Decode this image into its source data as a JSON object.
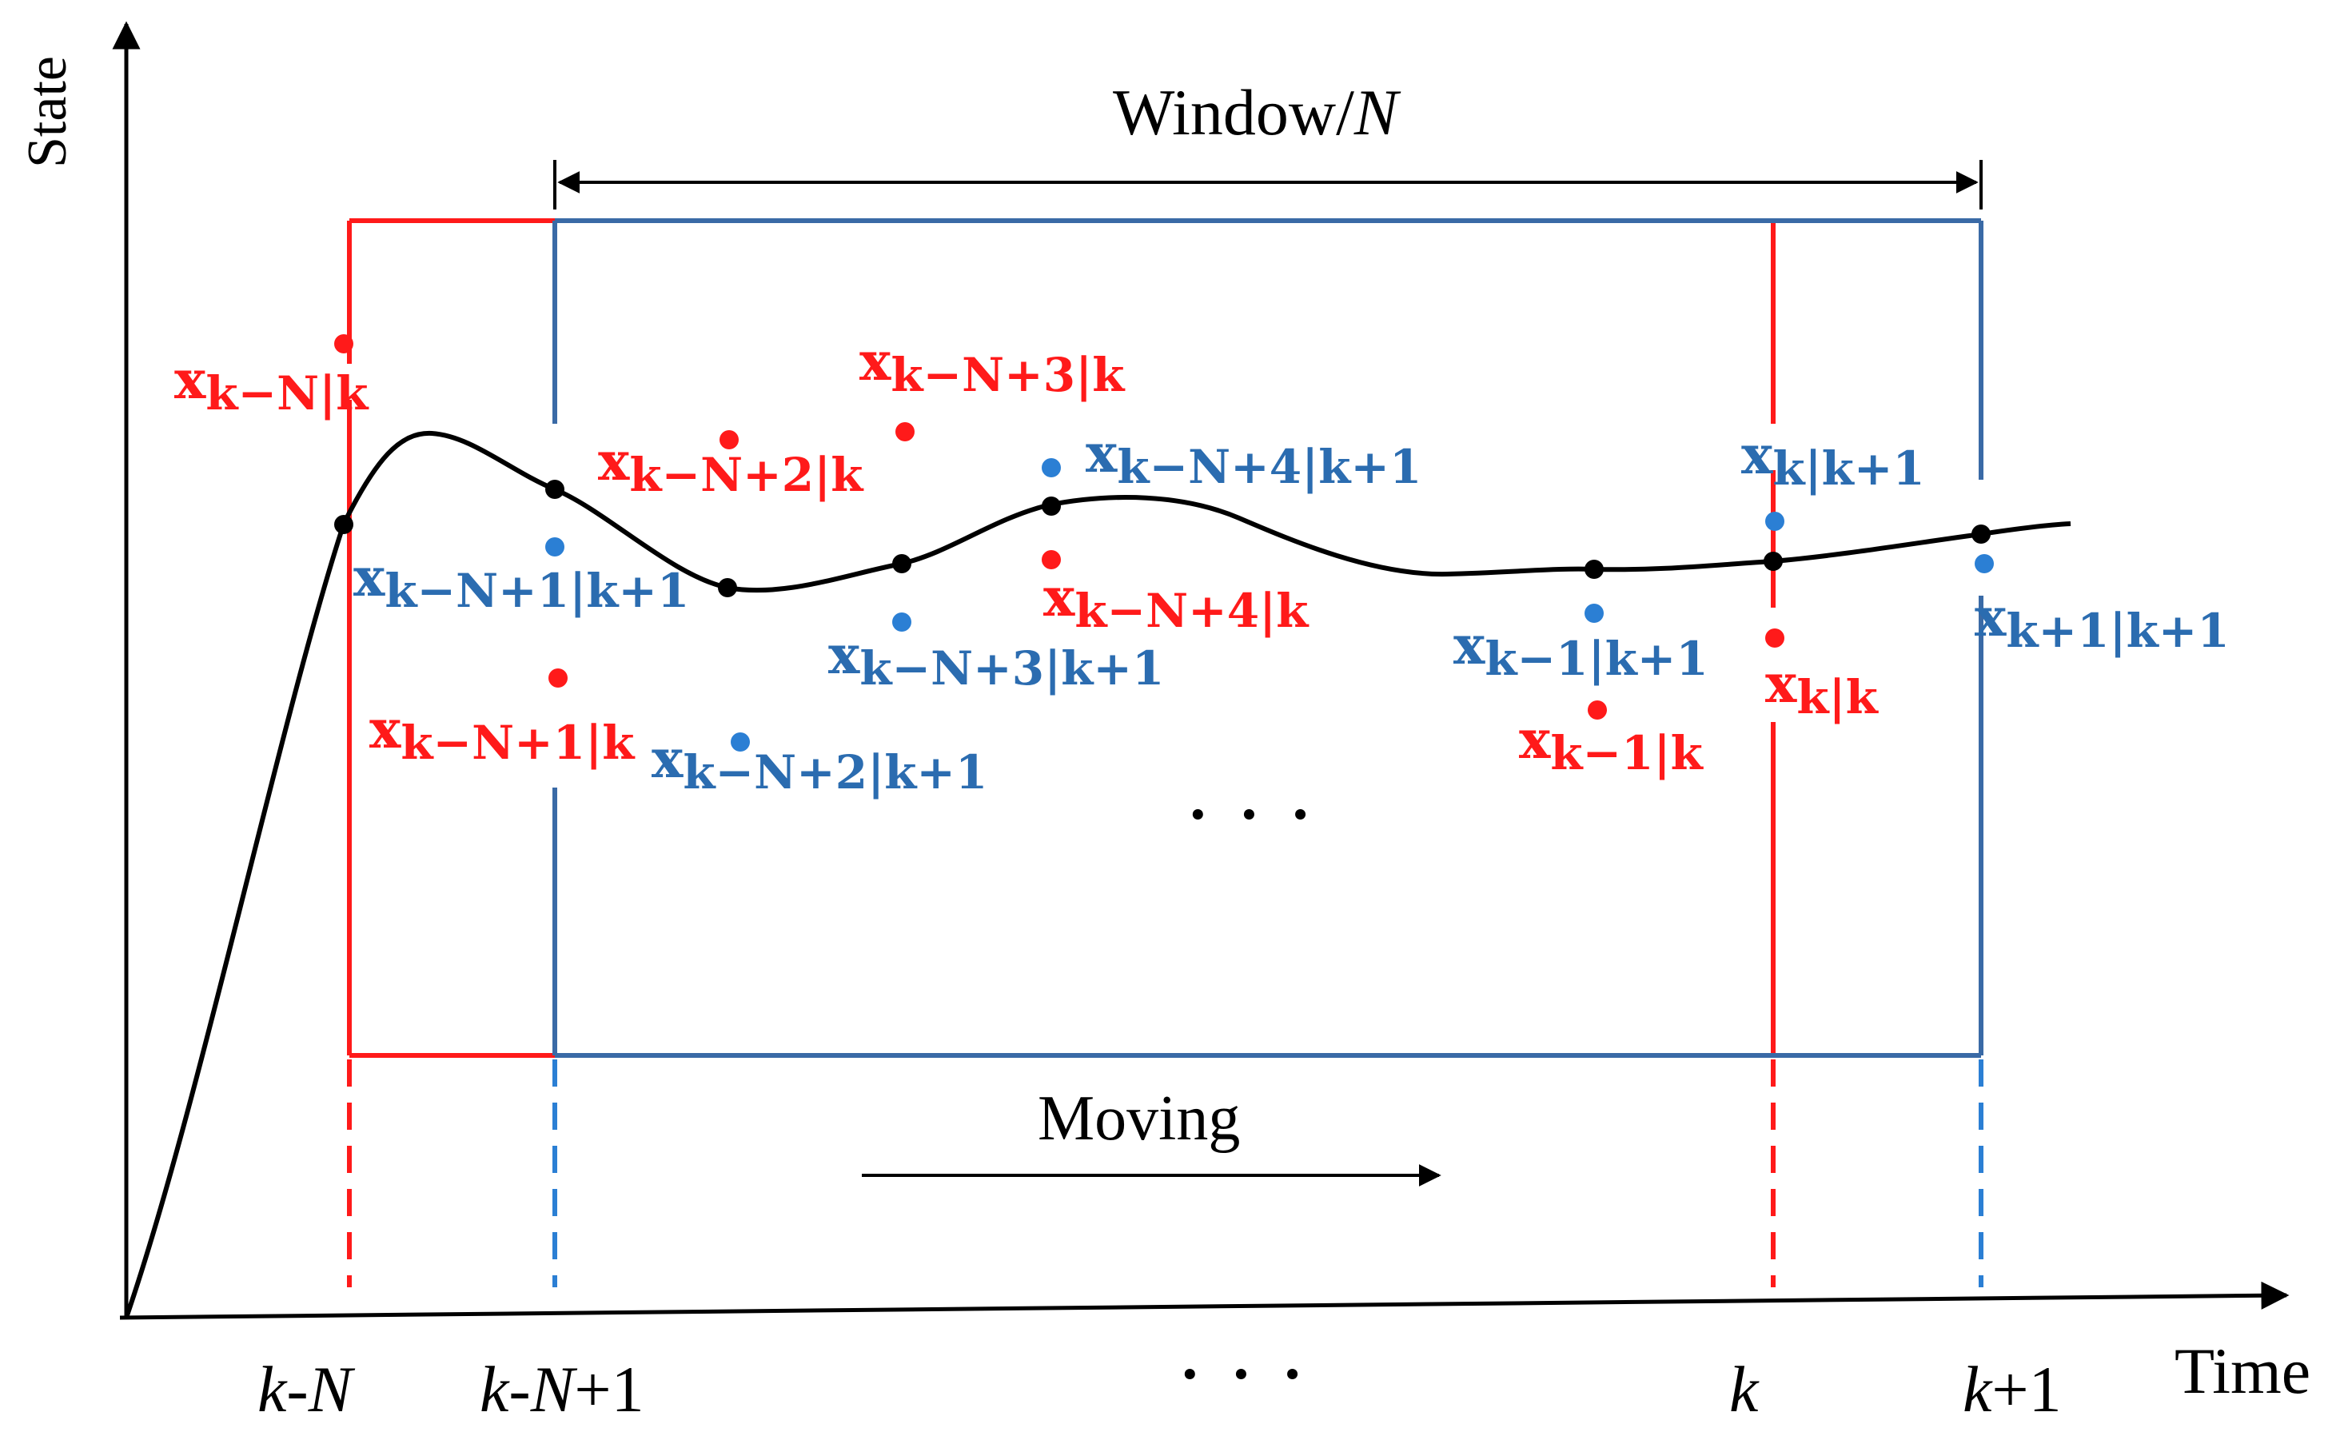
{
  "axes": {
    "y_label": "State",
    "x_label": "Time"
  },
  "window": {
    "label_prefix": "Window/",
    "label_var": "N"
  },
  "moving_label": "Moving",
  "ellipsis": "· · ·",
  "ticks": {
    "k_minus_N": {
      "a": "k",
      "b": "-",
      "c": "N",
      "d": ""
    },
    "k_minus_N_plus_1": {
      "a": "k",
      "b": "-",
      "c": "N",
      "d": "+1"
    },
    "k": {
      "a": "k",
      "b": "",
      "c": "",
      "d": ""
    },
    "k_plus_1": {
      "a": "k",
      "b": "+1",
      "c": "",
      "d": ""
    }
  },
  "colors": {
    "red": "#ff1a1a",
    "blue": "#2b6cb0",
    "window_blue": "#3a6aa6",
    "curve": "#000000"
  },
  "labels": {
    "red": [
      {
        "x": "x",
        "sub": "k−N|k"
      },
      {
        "x": "x",
        "sub": "k−N+1|k"
      },
      {
        "x": "x",
        "sub": "k−N+2|k"
      },
      {
        "x": "x",
        "sub": "k−N+3|k"
      },
      {
        "x": "x",
        "sub": "k−N+4|k"
      },
      {
        "x": "x",
        "sub": "k−1|k"
      },
      {
        "x": "x",
        "sub": "k|k"
      }
    ],
    "blue": [
      {
        "x": "x",
        "sub": "k−N+1|k+1"
      },
      {
        "x": "x",
        "sub": "k−N+2|k+1"
      },
      {
        "x": "x",
        "sub": "k−N+3|k+1"
      },
      {
        "x": "x",
        "sub": "k−N+4|k+1"
      },
      {
        "x": "x",
        "sub": "k−1|k+1"
      },
      {
        "x": "x",
        "sub": "k|k+1"
      },
      {
        "x": "x",
        "sub": "k+1|k+1"
      }
    ]
  }
}
